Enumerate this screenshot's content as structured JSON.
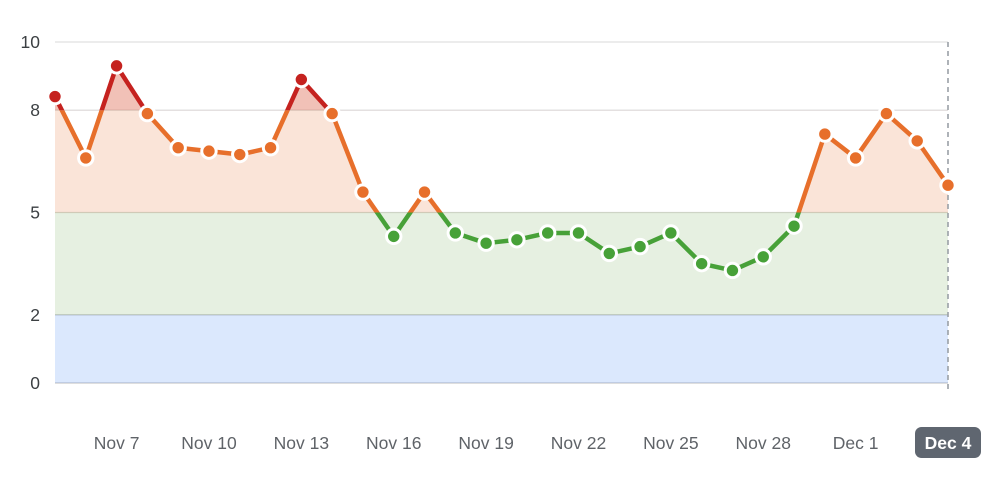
{
  "chart_data": {
    "type": "line",
    "x": [
      "Nov 5",
      "Nov 6",
      "Nov 7",
      "Nov 8",
      "Nov 9",
      "Nov 10",
      "Nov 11",
      "Nov 12",
      "Nov 13",
      "Nov 14",
      "Nov 15",
      "Nov 16",
      "Nov 17",
      "Nov 18",
      "Nov 19",
      "Nov 20",
      "Nov 21",
      "Nov 22",
      "Nov 23",
      "Nov 24",
      "Nov 25",
      "Nov 26",
      "Nov 27",
      "Nov 28",
      "Nov 29",
      "Nov 30",
      "Dec 1",
      "Dec 2",
      "Dec 3",
      "Dec 4"
    ],
    "values": [
      8.4,
      6.6,
      9.3,
      7.9,
      6.9,
      6.8,
      6.7,
      6.9,
      8.9,
      7.9,
      5.6,
      4.3,
      5.6,
      4.4,
      4.1,
      4.2,
      4.4,
      4.4,
      3.8,
      4.0,
      4.4,
      3.5,
      3.3,
      3.7,
      4.6,
      7.3,
      6.6,
      7.9,
      7.1,
      5.8
    ],
    "title": "",
    "xlabel": "",
    "ylabel": "",
    "ylim": [
      0,
      10
    ],
    "yticks": [
      0,
      2,
      5,
      8,
      10
    ],
    "xticks": [
      "Nov 7",
      "Nov 10",
      "Nov 13",
      "Nov 16",
      "Nov 19",
      "Nov 22",
      "Nov 25",
      "Nov 28",
      "Dec 1",
      "Dec 4"
    ],
    "xtick_indices": [
      2,
      5,
      8,
      11,
      14,
      17,
      20,
      23,
      26,
      29
    ],
    "selected_xtick": "Dec 4",
    "grid": true,
    "legend": "none",
    "thresholds": {
      "green_below": 5,
      "red_above": 8
    },
    "bands": [
      {
        "from": 0,
        "to": 2,
        "name": "low-band"
      },
      {
        "from": 2,
        "to": 5,
        "name": "normal-band"
      }
    ]
  },
  "colors": {
    "red": "#c5221f",
    "orange": "#e76f2b",
    "green": "#47a138",
    "band_blue": "rgba(66,133,244,0.19)",
    "band_green": "rgba(106,168,79,0.17)",
    "fill_peach": "rgba(230,105,40,0.18)",
    "fill_mauve": "rgba(197,34,31,0.18)",
    "gridline": "#e1e1e1",
    "gridline_5": "#d8d8d2",
    "gridline_2": "#cfcfcb",
    "gridline_0": "#c9c9c9",
    "dashed_line": "#9aa0a6",
    "ytick_text": "#3c4043",
    "xtick_text": "#5f6368",
    "badge_bg": "#5f6670",
    "badge_text": "#ffffff",
    "dot_stroke": "#ffffff"
  }
}
